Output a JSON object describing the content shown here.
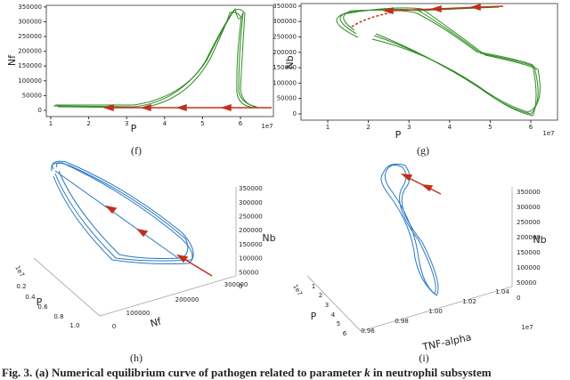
{
  "panels": [
    {
      "label": "(f)",
      "xlabel": "P",
      "ylabel": "Nf",
      "xticks": [
        "1",
        "2",
        "3",
        "4",
        "5",
        "6"
      ],
      "xoffset": "1e7",
      "yticks": [
        "0",
        "50000",
        "100000",
        "150000",
        "200000",
        "250000",
        "300000",
        "350000"
      ]
    },
    {
      "label": "(g)",
      "xlabel": "P",
      "ylabel": "Nb",
      "xticks": [
        "1",
        "2",
        "3",
        "4",
        "5",
        "6"
      ],
      "xoffset": "1e7",
      "yticks": [
        "0",
        "50000",
        "100000",
        "150000",
        "200000",
        "250000",
        "300000",
        "350000"
      ]
    },
    {
      "label": "(h)",
      "xlabel": "P",
      "ylabel": "Nf",
      "zlabel": "Nb",
      "xticks": [
        "0.2",
        "0.4",
        "0.6",
        "0.8",
        "1.0"
      ],
      "xoffset": "1e7",
      "yticks": [
        "0",
        "100000",
        "200000",
        "300000"
      ],
      "zticks": [
        "0",
        "50000",
        "100000",
        "150000",
        "200000",
        "250000",
        "300000",
        "350000"
      ]
    },
    {
      "label": "(i)",
      "xlabel": "P",
      "ylabel": "TNF-alpha",
      "zlabel": "Nb",
      "xticks": [
        "1",
        "2",
        "3",
        "4",
        "5",
        "6"
      ],
      "xoffset": "1e7",
      "yticks": [
        "0.96",
        "0.98",
        "1.00",
        "1.02",
        "1.04"
      ],
      "yoffset": "1e7",
      "zticks": [
        "0",
        "50000",
        "100000",
        "150000",
        "200000",
        "250000",
        "300000",
        "350000"
      ]
    }
  ],
  "caption": {
    "prefix": "Fig. 3.",
    "text": "(a) Numerical equilibrium curve of pathogen related to parameter",
    "symbol": "k",
    "suffix": "in neutrophil subsystem"
  }
}
